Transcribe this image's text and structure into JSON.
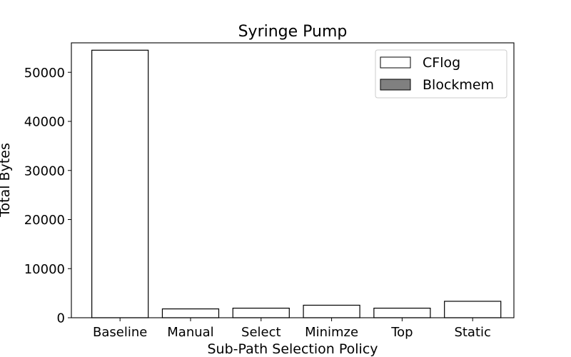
{
  "chart_data": {
    "type": "bar",
    "title": "Syringe Pump",
    "xlabel": "Sub-Path Selection Policy",
    "ylabel": "Total Bytes",
    "categories": [
      "Baseline",
      "Manual",
      "Select",
      "Minimze",
      "Top",
      "Static"
    ],
    "series": [
      {
        "name": "CFlog",
        "values": [
          54500,
          1800,
          1950,
          2550,
          1950,
          3350
        ],
        "color": "#ffffff"
      },
      {
        "name": "Blockmem",
        "values": [
          0,
          0,
          0,
          0,
          0,
          0
        ],
        "color": "#808080"
      }
    ],
    "ylim": [
      0,
      56000
    ],
    "yticks": [
      0,
      10000,
      20000,
      30000,
      40000,
      50000
    ],
    "grid": false,
    "legend_position": "top-right"
  }
}
